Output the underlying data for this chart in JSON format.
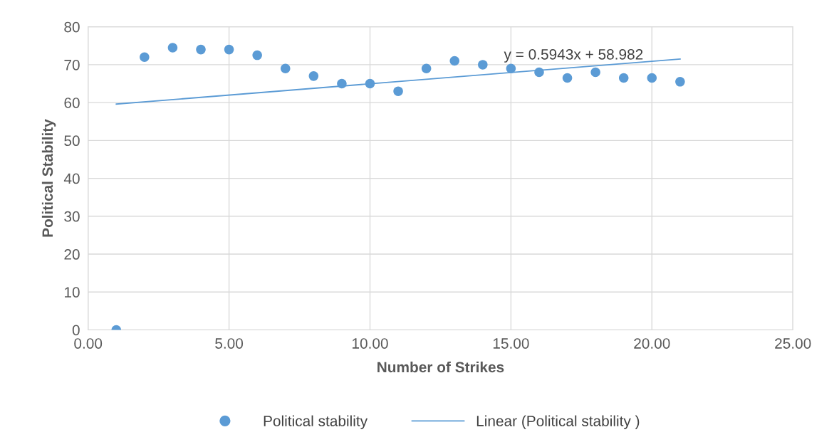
{
  "chart_data": {
    "type": "scatter",
    "xlabel": "Number of Strikes",
    "ylabel": "Political Stability",
    "x": [
      1,
      2,
      3,
      4,
      5,
      6,
      7,
      8,
      9,
      10,
      11,
      12,
      13,
      14,
      15,
      16,
      17,
      18,
      19,
      20,
      21
    ],
    "series": [
      {
        "name": "Political stability",
        "color": "#5b9bd5",
        "marker": "circle",
        "values": [
          0,
          72,
          74.5,
          74,
          74,
          72.5,
          69,
          67,
          65,
          65,
          63,
          69,
          71,
          70,
          69,
          68,
          66.5,
          68,
          66.5,
          66.5,
          65.5
        ]
      },
      {
        "name": "Linear (Political stability )",
        "color": "#5b9bd5",
        "type": "line",
        "line_style": "solid",
        "x": [
          1,
          21
        ],
        "values": [
          59.6,
          71.5
        ]
      }
    ],
    "annotations": [
      "y = 0.5943x + 58.982"
    ],
    "xlim": [
      0,
      25
    ],
    "xticks": [
      {
        "value": 0,
        "label": "0.00"
      },
      {
        "value": 5,
        "label": "5.00"
      },
      {
        "value": 10,
        "label": "10.00"
      },
      {
        "value": 15,
        "label": "15.00"
      },
      {
        "value": 20,
        "label": "20.00"
      },
      {
        "value": 25,
        "label": "25.00"
      }
    ],
    "ylim": [
      0,
      80
    ],
    "yticks": [
      0,
      10,
      20,
      30,
      40,
      50,
      60,
      70,
      80
    ],
    "grid": true,
    "legend": "bottom"
  }
}
